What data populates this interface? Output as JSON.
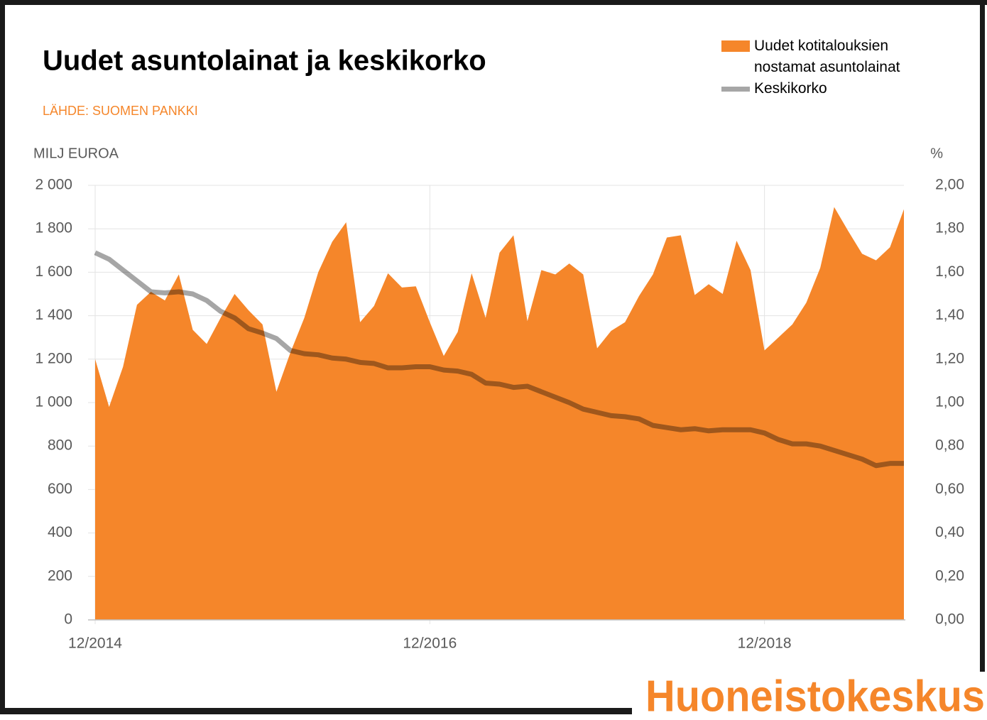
{
  "chart_data": {
    "type": "area-line",
    "title": "Uudet asuntolainat ja keskikorko",
    "subtitle": "LÄHDE: SUOMEN PANKKI",
    "ylabel": "MILJ EUROA",
    "y2label": "%",
    "categories": [
      "12/2014",
      null,
      null,
      null,
      null,
      null,
      null,
      null,
      null,
      null,
      null,
      null,
      null,
      null,
      null,
      null,
      null,
      null,
      null,
      null,
      null,
      null,
      null,
      null,
      "12/2016",
      null,
      null,
      null,
      null,
      null,
      null,
      null,
      null,
      null,
      null,
      null,
      null,
      null,
      null,
      null,
      null,
      null,
      null,
      null,
      null,
      null,
      null,
      null,
      "12/2018",
      null,
      null,
      null,
      null,
      null,
      null,
      null,
      null,
      null,
      null
    ],
    "series": [
      {
        "name": "Uudet kotitalouksien nostamat asuntolainat",
        "color": "#f5862a",
        "type": "area",
        "values": [
          1200,
          980,
          1165,
          1450,
          1510,
          1470,
          1590,
          1335,
          1270,
          1390,
          1500,
          1425,
          1360,
          1050,
          1230,
          1390,
          1600,
          1740,
          1830,
          1370,
          1445,
          1595,
          1530,
          1535,
          1370,
          1215,
          1325,
          1595,
          1390,
          1690,
          1770,
          1375,
          1610,
          1590,
          1640,
          1590,
          1250,
          1330,
          1370,
          1490,
          1590,
          1760,
          1770,
          1495,
          1545,
          1500,
          1745,
          1610,
          1240,
          1300,
          1360,
          1460,
          1620,
          1900,
          1790,
          1685,
          1655,
          1715,
          1890
        ]
      },
      {
        "name": "Keskikorko",
        "color": "#a6a6a6",
        "type": "line",
        "axis": "y2",
        "values": [
          1.69,
          1.66,
          1.61,
          1.56,
          1.51,
          1.505,
          1.51,
          1.5,
          1.47,
          1.42,
          1.39,
          1.34,
          1.32,
          1.295,
          1.24,
          1.225,
          1.22,
          1.205,
          1.2,
          1.185,
          1.18,
          1.16,
          1.16,
          1.165,
          1.165,
          1.15,
          1.145,
          1.13,
          1.09,
          1.085,
          1.07,
          1.075,
          1.05,
          1.025,
          1.0,
          0.97,
          0.955,
          0.94,
          0.935,
          0.925,
          0.895,
          0.885,
          0.875,
          0.88,
          0.87,
          0.875,
          0.875,
          0.875,
          0.86,
          0.83,
          0.81,
          0.81,
          0.8,
          0.78,
          0.76,
          0.74,
          0.71,
          0.72,
          0.72
        ]
      }
    ],
    "ylim": [
      0,
      2000
    ],
    "yticks": [
      0,
      200,
      400,
      600,
      800,
      {
        "value": 1000,
        "label": "1 000"
      },
      {
        "value": 1200,
        "label": "1 200"
      },
      {
        "value": 1400,
        "label": "1 400"
      },
      {
        "value": 1600,
        "label": "1 600"
      },
      {
        "value": 1800,
        "label": "1 800"
      },
      {
        "value": 2000,
        "label": "2 000"
      }
    ],
    "y2lim": [
      0,
      2
    ],
    "y2ticks": [
      {
        "value": 0,
        "label": "0,00"
      },
      {
        "value": 0.2,
        "label": "0,20"
      },
      {
        "value": 0.4,
        "label": "0,40"
      },
      {
        "value": 0.6,
        "label": "0,60"
      },
      {
        "value": 0.8,
        "label": "0,80"
      },
      {
        "value": 1,
        "label": "1,00"
      },
      {
        "value": 1.2,
        "label": "1,20"
      },
      {
        "value": 1.4,
        "label": "1,40"
      },
      {
        "value": 1.6,
        "label": "1,60"
      },
      {
        "value": 1.8,
        "label": "1,80"
      },
      {
        "value": 2,
        "label": "2,00"
      }
    ],
    "grid": true,
    "legend": "top-right"
  },
  "brand": "Huoneistokeskus"
}
